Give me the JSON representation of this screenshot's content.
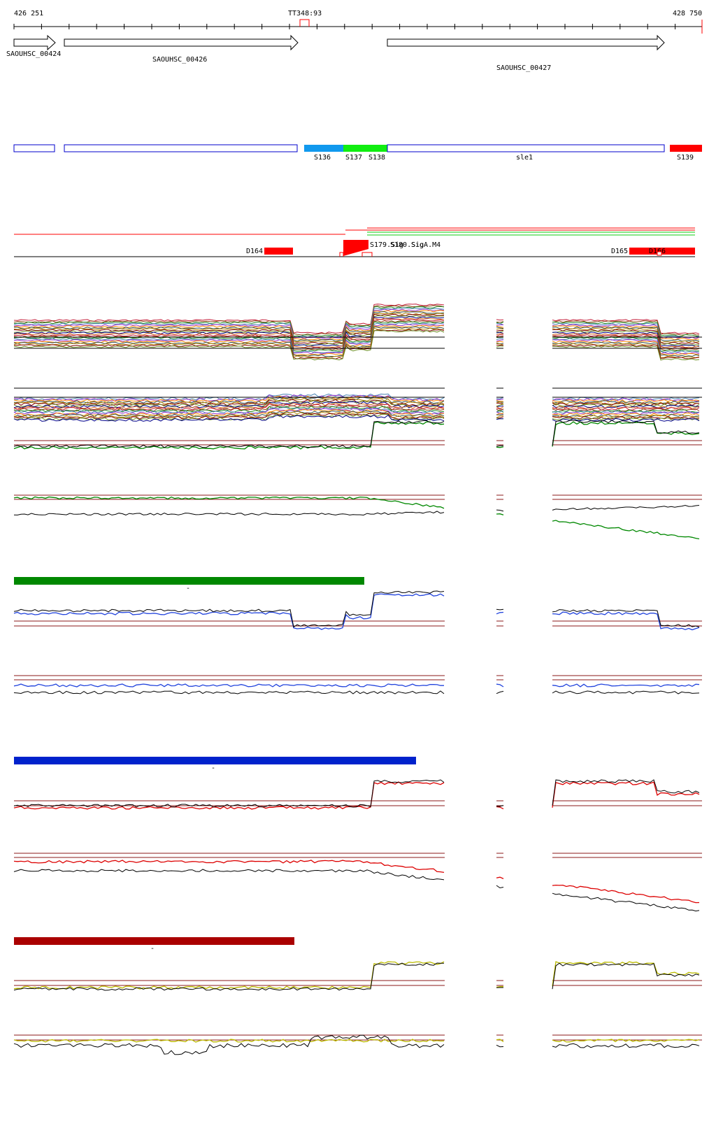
{
  "ruler": {
    "start_label": "426 251",
    "mid_label": "TT348:93",
    "end_label": "428 750"
  },
  "genes": [
    {
      "label": "SAOUHSC_00424"
    },
    {
      "label": "SAOUHSC_00426"
    },
    {
      "label": "SAOUHSC_00427"
    }
  ],
  "segments": [
    {
      "label": "",
      "color": "#ffffff",
      "outline": "#0000cc"
    },
    {
      "label": "",
      "color": "#ffffff",
      "outline": "#0000cc"
    },
    {
      "label": "S136",
      "color": "#1199ee",
      "outline": "#1199ee"
    },
    {
      "label": "S137",
      "color": "#11ee11",
      "outline": "#11ee11"
    },
    {
      "label": "S138",
      "color": "#11ee11",
      "outline": "#11ee11"
    },
    {
      "label": "sle1",
      "color": "#ffffff",
      "outline": "#0000cc"
    },
    {
      "label": "S139",
      "color": "#ff0000",
      "outline": "#ff0000"
    }
  ],
  "features": [
    {
      "label": "D164"
    },
    {
      "label": "S179.Sig"
    },
    {
      "label": "S180.Sig"
    },
    {
      "label": "SigA.M4"
    },
    {
      "label": "D165"
    },
    {
      "label": "D166"
    }
  ],
  "condition_bars": [
    {
      "label": "-",
      "color": "#008800"
    },
    {
      "label": "-",
      "color": "#0022cc"
    },
    {
      "label": "-",
      "color": "#aa0000"
    }
  ],
  "colors": {
    "gene_outline": "#000000",
    "segment_outline": "#0000cc",
    "feature_red": "#ff0000",
    "threshold_line": "#8b1a1a",
    "green_trace": "#008800",
    "blue_trace": "#2244dd",
    "red_trace": "#dd0000",
    "yellow_trace": "#bbbb00"
  }
}
